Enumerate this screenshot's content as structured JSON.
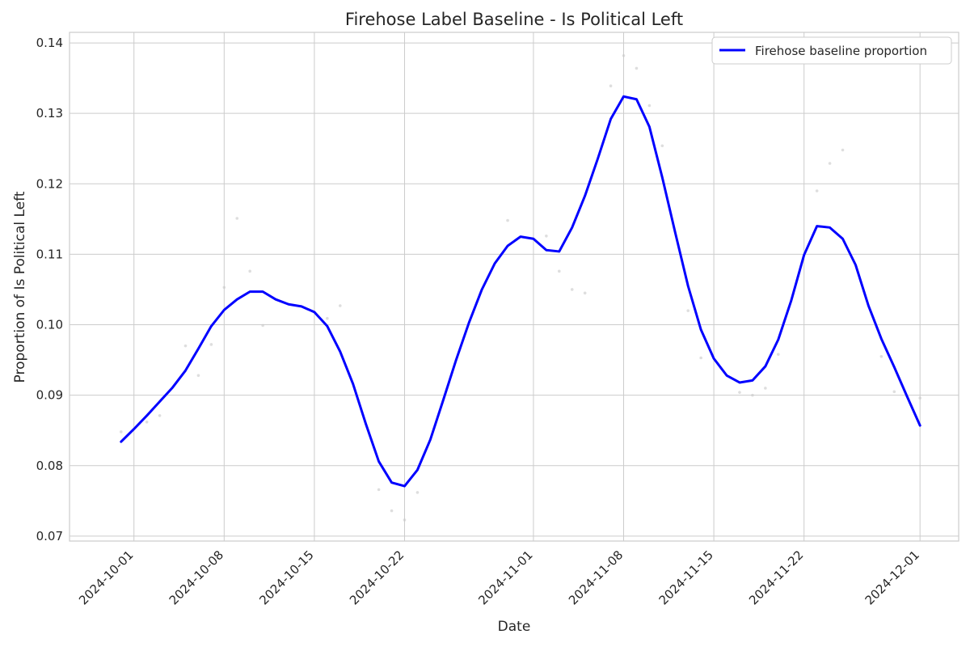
{
  "chart_data": {
    "type": "line",
    "title": "Firehose Label Baseline - Is Political Left",
    "xlabel": "Date",
    "ylabel": "Proportion of Is Political Left",
    "x_ticks": [
      "2024-10-01",
      "2024-10-08",
      "2024-10-15",
      "2024-10-22",
      "2024-11-01",
      "2024-11-08",
      "2024-11-15",
      "2024-11-22",
      "2024-12-01"
    ],
    "y_ticks": [
      "0.07",
      "0.08",
      "0.09",
      "0.10",
      "0.11",
      "0.12",
      "0.13",
      "0.14"
    ],
    "xlim": [
      "2024-09-26",
      "2024-12-04"
    ],
    "ylim": [
      0.0693,
      0.1415
    ],
    "grid": true,
    "legend_position": "top-right",
    "series": [
      {
        "name": "Firehose baseline proportion",
        "color": "#0000ff",
        "points": [
          [
            "2024-09-30",
            0.0834
          ],
          [
            "2024-10-01",
            0.0852
          ],
          [
            "2024-10-02",
            0.0871
          ],
          [
            "2024-10-03",
            0.0891
          ],
          [
            "2024-10-04",
            0.0911
          ],
          [
            "2024-10-05",
            0.0935
          ],
          [
            "2024-10-06",
            0.0966
          ],
          [
            "2024-10-07",
            0.0998
          ],
          [
            "2024-10-08",
            0.1021
          ],
          [
            "2024-10-09",
            0.1036
          ],
          [
            "2024-10-10",
            0.1047
          ],
          [
            "2024-10-11",
            0.1047
          ],
          [
            "2024-10-12",
            0.1036
          ],
          [
            "2024-10-13",
            0.1029
          ],
          [
            "2024-10-14",
            0.1026
          ],
          [
            "2024-10-15",
            0.1018
          ],
          [
            "2024-10-16",
            0.0998
          ],
          [
            "2024-10-17",
            0.0962
          ],
          [
            "2024-10-18",
            0.0916
          ],
          [
            "2024-10-19",
            0.0859
          ],
          [
            "2024-10-20",
            0.0806
          ],
          [
            "2024-10-21",
            0.0776
          ],
          [
            "2024-10-22",
            0.0771
          ],
          [
            "2024-10-23",
            0.0794
          ],
          [
            "2024-10-24",
            0.0837
          ],
          [
            "2024-10-25",
            0.0893
          ],
          [
            "2024-10-26",
            0.095
          ],
          [
            "2024-10-27",
            0.1003
          ],
          [
            "2024-10-28",
            0.105
          ],
          [
            "2024-10-29",
            0.1087
          ],
          [
            "2024-10-30",
            0.1112
          ],
          [
            "2024-10-31",
            0.1125
          ],
          [
            "2024-11-01",
            0.1122
          ],
          [
            "2024-11-02",
            0.1106
          ],
          [
            "2024-11-03",
            0.1104
          ],
          [
            "2024-11-04",
            0.1138
          ],
          [
            "2024-11-05",
            0.1183
          ],
          [
            "2024-11-06",
            0.1236
          ],
          [
            "2024-11-07",
            0.1292
          ],
          [
            "2024-11-08",
            0.1324
          ],
          [
            "2024-11-09",
            0.132
          ],
          [
            "2024-11-10",
            0.1281
          ],
          [
            "2024-11-11",
            0.1209
          ],
          [
            "2024-11-12",
            0.1131
          ],
          [
            "2024-11-13",
            0.1055
          ],
          [
            "2024-11-14",
            0.0993
          ],
          [
            "2024-11-15",
            0.0952
          ],
          [
            "2024-11-16",
            0.0928
          ],
          [
            "2024-11-17",
            0.0918
          ],
          [
            "2024-11-18",
            0.0921
          ],
          [
            "2024-11-19",
            0.0941
          ],
          [
            "2024-11-20",
            0.0979
          ],
          [
            "2024-11-21",
            0.1034
          ],
          [
            "2024-11-22",
            0.1099
          ],
          [
            "2024-11-23",
            0.114
          ],
          [
            "2024-11-24",
            0.1138
          ],
          [
            "2024-11-25",
            0.1122
          ],
          [
            "2024-11-26",
            0.1085
          ],
          [
            "2024-11-27",
            0.1027
          ],
          [
            "2024-11-28",
            0.098
          ],
          [
            "2024-11-29",
            0.094
          ],
          [
            "2024-11-30",
            0.0898
          ],
          [
            "2024-12-01",
            0.0857
          ]
        ]
      },
      {
        "name": "",
        "type": "scatter",
        "color": "#c8c8c8",
        "points": [
          [
            "2024-09-30",
            0.0848
          ],
          [
            "2024-10-02",
            0.0862
          ],
          [
            "2024-10-03",
            0.0871
          ],
          [
            "2024-10-05",
            0.097
          ],
          [
            "2024-10-06",
            0.0928
          ],
          [
            "2024-10-07",
            0.0972
          ],
          [
            "2024-10-08",
            0.1053
          ],
          [
            "2024-10-09",
            0.1151
          ],
          [
            "2024-10-10",
            0.1076
          ],
          [
            "2024-10-11",
            0.0999
          ],
          [
            "2024-10-16",
            0.1009
          ],
          [
            "2024-10-17",
            0.1027
          ],
          [
            "2024-10-20",
            0.0766
          ],
          [
            "2024-10-21",
            0.0736
          ],
          [
            "2024-10-22",
            0.0723
          ],
          [
            "2024-10-23",
            0.0762
          ],
          [
            "2024-10-30",
            0.1148
          ],
          [
            "2024-11-02",
            0.1126
          ],
          [
            "2024-11-03",
            0.1076
          ],
          [
            "2024-11-04",
            0.105
          ],
          [
            "2024-11-05",
            0.1045
          ],
          [
            "2024-11-07",
            0.1339
          ],
          [
            "2024-11-08",
            0.1382
          ],
          [
            "2024-11-09",
            0.1364
          ],
          [
            "2024-11-10",
            0.1311
          ],
          [
            "2024-11-11",
            0.1254
          ],
          [
            "2024-11-13",
            0.102
          ],
          [
            "2024-11-14",
            0.0953
          ],
          [
            "2024-11-17",
            0.0904
          ],
          [
            "2024-11-18",
            0.09
          ],
          [
            "2024-11-19",
            0.091
          ],
          [
            "2024-11-20",
            0.0958
          ],
          [
            "2024-11-23",
            0.119
          ],
          [
            "2024-11-24",
            0.1229
          ],
          [
            "2024-11-25",
            0.1248
          ],
          [
            "2024-11-28",
            0.0955
          ],
          [
            "2024-11-29",
            0.0905
          ],
          [
            "2024-12-01",
            0.0896
          ]
        ]
      }
    ]
  }
}
